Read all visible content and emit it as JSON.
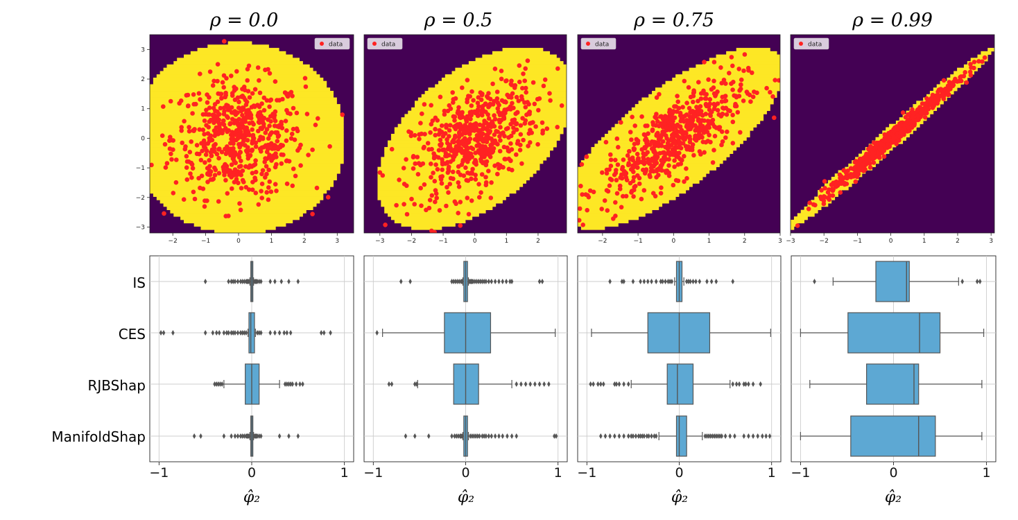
{
  "figure": {
    "panel_titles": [
      "ρ = 0.0",
      "ρ = 0.5",
      "ρ = 0.75",
      "ρ = 0.99"
    ],
    "legend_label": "data",
    "method_labels": [
      "IS",
      "CES",
      "RJBShap",
      "ManifoldShap"
    ],
    "boxplot_xlabel": "φ̂₂",
    "boxplot_xticks": [
      "−1",
      "0",
      "1"
    ]
  },
  "colors": {
    "manifold_in": "#fde725",
    "manifold_out": "#440154",
    "points": "#ff2222",
    "box_fill": "#5da8d3",
    "box_line": "#555555",
    "grid": "#cccccc"
  },
  "chart_data": [
    {
      "type": "scatter",
      "title": "ρ = 0.0",
      "rho": 0.0,
      "legend": "data",
      "legend_position": "top-right",
      "xlim": [
        -2.7,
        3.5
      ],
      "ylim": [
        -3.2,
        3.5
      ],
      "xticks": [
        -2,
        -1,
        0,
        1,
        2,
        3
      ],
      "yticks": [
        -3,
        -2,
        -1,
        0,
        1,
        2,
        3
      ],
      "n_points": 600
    },
    {
      "type": "scatter",
      "title": "ρ = 0.5",
      "rho": 0.5,
      "legend": "data",
      "legend_position": "top-left",
      "xlim": [
        -3.5,
        2.9
      ],
      "ylim": [
        -3.2,
        3.5
      ],
      "xticks": [
        -3,
        -2,
        -1,
        0,
        1,
        2
      ],
      "yticks": [],
      "n_points": 600
    },
    {
      "type": "scatter",
      "title": "ρ = 0.75",
      "rho": 0.75,
      "legend": "data",
      "legend_position": "top-left",
      "xlim": [
        -2.7,
        3.0
      ],
      "ylim": [
        -3.2,
        3.5
      ],
      "xticks": [
        -2,
        -1,
        0,
        1,
        2,
        3
      ],
      "yticks": [],
      "n_points": 600
    },
    {
      "type": "scatter",
      "title": "ρ = 0.99",
      "rho": 0.99,
      "legend": "data",
      "legend_position": "top-left",
      "xlim": [
        -3.0,
        3.1
      ],
      "ylim": [
        -3.2,
        3.5
      ],
      "xticks": [
        -3,
        -2,
        -1,
        0,
        1,
        2,
        3
      ],
      "yticks": [],
      "n_points": 600
    },
    {
      "type": "box",
      "panel": "ρ = 0.0",
      "xlabel": "φ̂₂",
      "xlim": [
        -1.1,
        1.1
      ],
      "xticks": [
        -1,
        0,
        1
      ],
      "categories": [
        "IS",
        "CES",
        "RJBShap",
        "ManifoldShap"
      ],
      "boxes": [
        {
          "name": "IS",
          "whislo": -0.02,
          "q1": -0.01,
          "med": 0.0,
          "q3": 0.01,
          "whishi": 0.02,
          "fliers": [
            -0.5,
            -0.25,
            -0.22,
            -0.2,
            -0.18,
            -0.15,
            -0.12,
            -0.1,
            -0.08,
            -0.06,
            -0.05,
            -0.04,
            -0.03,
            0.03,
            0.04,
            0.05,
            0.06,
            0.08,
            0.1,
            0.2,
            0.25,
            0.32,
            0.4,
            0.5
          ]
        },
        {
          "name": "CES",
          "whislo": -0.04,
          "q1": -0.03,
          "med": -0.01,
          "q3": 0.03,
          "whishi": 0.04,
          "fliers": [
            -0.98,
            -0.95,
            -0.85,
            -0.5,
            -0.42,
            -0.38,
            -0.35,
            -0.3,
            -0.27,
            -0.25,
            -0.22,
            -0.2,
            -0.18,
            -0.15,
            -0.12,
            -0.1,
            -0.08,
            -0.06,
            0.06,
            0.08,
            0.1,
            0.2,
            0.25,
            0.3,
            0.35,
            0.38,
            0.42,
            0.75,
            0.78,
            0.85
          ]
        },
        {
          "name": "RJBShap",
          "whislo": -0.3,
          "q1": -0.07,
          "med": 0.0,
          "q3": 0.08,
          "whishi": 0.3,
          "fliers": [
            -0.4,
            -0.38,
            -0.36,
            -0.34,
            -0.32,
            0.36,
            0.38,
            0.4,
            0.42,
            0.44,
            0.48,
            0.52,
            0.55
          ]
        },
        {
          "name": "ManifoldShap",
          "whislo": -0.02,
          "q1": -0.01,
          "med": 0.0,
          "q3": 0.01,
          "whishi": 0.02,
          "fliers": [
            -0.62,
            -0.55,
            -0.3,
            -0.22,
            -0.18,
            -0.15,
            -0.12,
            -0.1,
            -0.08,
            -0.06,
            -0.05,
            -0.04,
            -0.03,
            0.03,
            0.04,
            0.05,
            0.06,
            0.08,
            0.1,
            0.3,
            0.4,
            0.5
          ]
        }
      ]
    },
    {
      "type": "box",
      "panel": "ρ = 0.5",
      "xlabel": "φ̂₂",
      "xlim": [
        -1.1,
        1.1
      ],
      "xticks": [
        -1,
        0,
        1
      ],
      "categories": [
        "IS",
        "CES",
        "RJBShap",
        "ManifoldShap"
      ],
      "boxes": [
        {
          "name": "IS",
          "whislo": -0.03,
          "q1": -0.02,
          "med": 0.0,
          "q3": 0.02,
          "whishi": 0.03,
          "fliers": [
            -0.7,
            -0.6,
            -0.15,
            -0.13,
            -0.11,
            -0.09,
            -0.07,
            -0.05,
            -0.04,
            0.04,
            0.05,
            0.06,
            0.07,
            0.08,
            0.1,
            0.12,
            0.14,
            0.16,
            0.18,
            0.2,
            0.22,
            0.25,
            0.28,
            0.32,
            0.36,
            0.4,
            0.44,
            0.48,
            0.5,
            0.8,
            0.83
          ]
        },
        {
          "name": "CES",
          "whislo": -0.9,
          "q1": -0.23,
          "med": 0.0,
          "q3": 0.27,
          "whishi": 0.97,
          "fliers": [
            -0.96
          ]
        },
        {
          "name": "RJBShap",
          "whislo": -0.52,
          "q1": -0.13,
          "med": 0.0,
          "q3": 0.14,
          "whishi": 0.5,
          "fliers": [
            -0.83,
            -0.8,
            -0.55,
            -0.53,
            0.55,
            0.6,
            0.65,
            0.7,
            0.75,
            0.8,
            0.85,
            0.9
          ]
        },
        {
          "name": "ManifoldShap",
          "whislo": -0.03,
          "q1": -0.02,
          "med": 0.0,
          "q3": 0.02,
          "whishi": 0.03,
          "fliers": [
            -0.65,
            -0.55,
            -0.4,
            -0.15,
            -0.12,
            -0.1,
            -0.08,
            -0.06,
            -0.05,
            -0.04,
            0.05,
            0.07,
            0.09,
            0.11,
            0.13,
            0.15,
            0.18,
            0.2,
            0.22,
            0.25,
            0.28,
            0.32,
            0.36,
            0.4,
            0.45,
            0.5,
            0.55,
            0.96,
            0.98
          ]
        }
      ]
    },
    {
      "type": "box",
      "panel": "ρ = 0.75",
      "xlabel": "φ̂₂",
      "xlim": [
        -1.1,
        1.1
      ],
      "xticks": [
        -1,
        0,
        1
      ],
      "categories": [
        "IS",
        "CES",
        "RJBShap",
        "ManifoldShap"
      ],
      "boxes": [
        {
          "name": "IS",
          "whislo": -0.05,
          "q1": -0.03,
          "med": 0.0,
          "q3": 0.03,
          "whishi": 0.05,
          "fliers": [
            -0.75,
            -0.62,
            -0.6,
            -0.5,
            -0.42,
            -0.38,
            -0.34,
            -0.3,
            -0.25,
            -0.2,
            -0.18,
            -0.15,
            -0.12,
            -0.1,
            -0.08,
            0.08,
            0.1,
            0.12,
            0.15,
            0.18,
            0.22,
            0.3,
            0.35,
            0.4,
            0.58
          ]
        },
        {
          "name": "CES",
          "whislo": -0.95,
          "q1": -0.34,
          "med": 0.0,
          "q3": 0.33,
          "whishi": 0.99,
          "fliers": []
        },
        {
          "name": "RJBShap",
          "whislo": -0.52,
          "q1": -0.13,
          "med": -0.02,
          "q3": 0.15,
          "whishi": 0.55,
          "fliers": [
            -0.96,
            -0.93,
            -0.88,
            -0.85,
            -0.82,
            -0.7,
            -0.68,
            -0.65,
            -0.6,
            -0.55,
            0.58,
            0.62,
            0.65,
            0.7,
            0.72,
            0.75,
            0.8,
            0.88
          ]
        },
        {
          "name": "ManifoldShap",
          "whislo": -0.22,
          "q1": -0.03,
          "med": 0.0,
          "q3": 0.08,
          "whishi": 0.25,
          "fliers": [
            -0.85,
            -0.8,
            -0.75,
            -0.7,
            -0.65,
            -0.6,
            -0.55,
            -0.52,
            -0.5,
            -0.47,
            -0.44,
            -0.42,
            -0.4,
            -0.38,
            -0.35,
            -0.33,
            -0.3,
            -0.27,
            -0.25,
            0.28,
            0.3,
            0.32,
            0.34,
            0.36,
            0.38,
            0.4,
            0.42,
            0.44,
            0.46,
            0.5,
            0.55,
            0.6,
            0.7,
            0.75,
            0.8,
            0.85,
            0.9,
            0.94,
            0.98
          ]
        }
      ]
    },
    {
      "type": "box",
      "panel": "ρ = 0.99",
      "xlabel": "φ̂₂",
      "xlim": [
        -1.1,
        1.1
      ],
      "xticks": [
        -1,
        0,
        1
      ],
      "categories": [
        "IS",
        "CES",
        "RJBShap",
        "ManifoldShap"
      ],
      "boxes": [
        {
          "name": "IS",
          "whislo": -0.65,
          "q1": -0.19,
          "med": 0.14,
          "q3": 0.17,
          "whishi": 0.7,
          "fliers": [
            -0.85,
            0.74,
            0.9,
            0.93
          ]
        },
        {
          "name": "CES",
          "whislo": -1.0,
          "q1": -0.49,
          "med": 0.28,
          "q3": 0.5,
          "whishi": 0.97,
          "fliers": []
        },
        {
          "name": "RJBShap",
          "whislo": -0.9,
          "q1": -0.29,
          "med": 0.22,
          "q3": 0.27,
          "whishi": 0.95,
          "fliers": []
        },
        {
          "name": "ManifoldShap",
          "whislo": -1.0,
          "q1": -0.46,
          "med": 0.27,
          "q3": 0.45,
          "whishi": 0.95,
          "fliers": []
        }
      ]
    }
  ]
}
